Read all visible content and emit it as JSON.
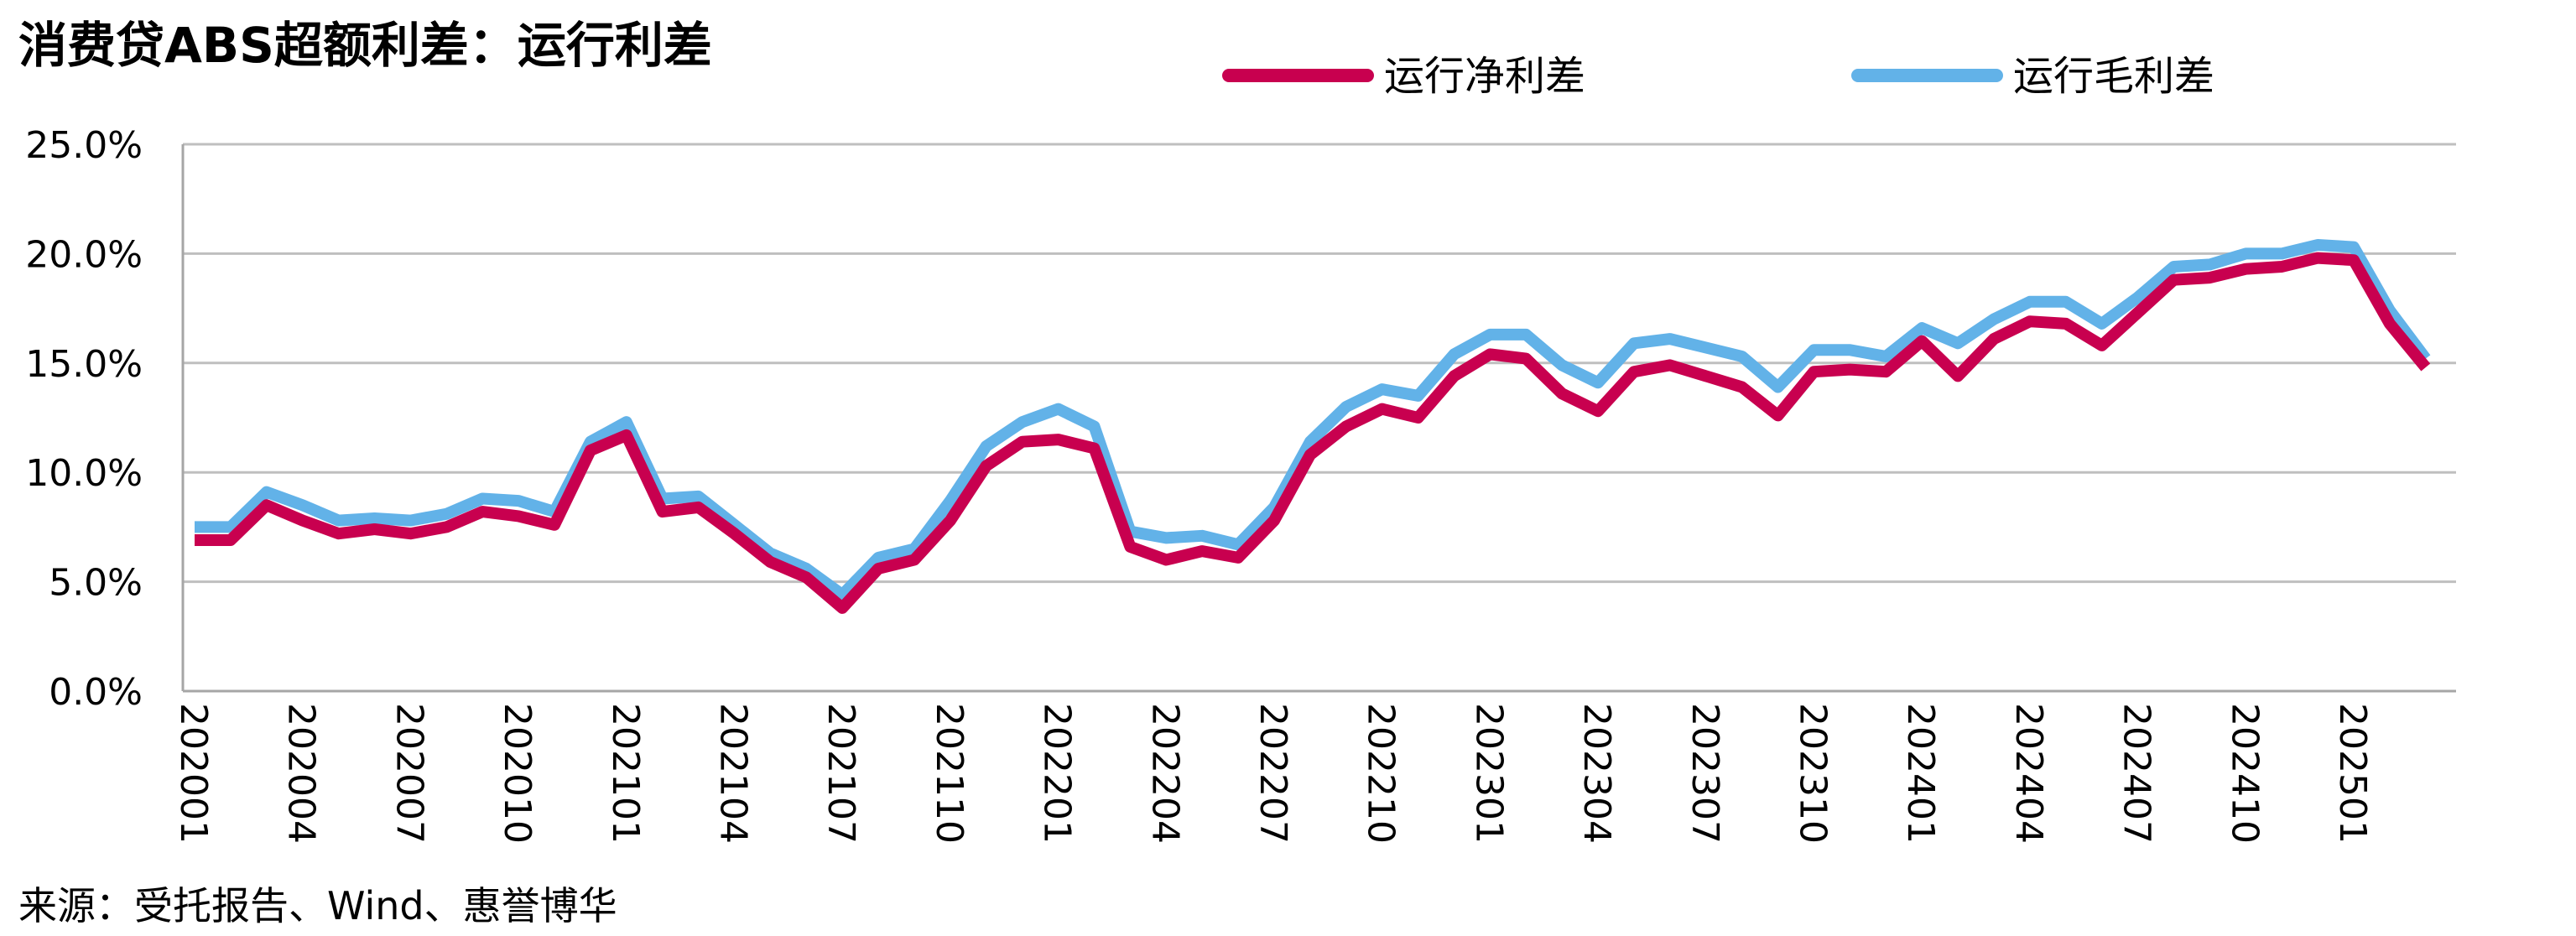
{
  "header": {
    "title": "消费贷ABS超额利差：运行利差"
  },
  "footer": {
    "source": "来源：受托报告、Wind、惠誉博华"
  },
  "colors": {
    "net": "#C8004F",
    "gross": "#62B2E8",
    "grid": "#BFBFBF",
    "axis": "#A6A6A6"
  },
  "chart_data": {
    "type": "line",
    "title": "消费贷ABS超额利差：运行利差",
    "xlabel": "",
    "ylabel": "",
    "ylim": [
      0,
      25
    ],
    "yticks": [
      "0.0%",
      "5.0%",
      "10.0%",
      "15.0%",
      "20.0%",
      "25.0%"
    ],
    "ytick_values": [
      0,
      5,
      10,
      15,
      20,
      25
    ],
    "xtick_labels": [
      "202001",
      "202004",
      "202007",
      "202010",
      "202101",
      "202104",
      "202107",
      "202110",
      "202201",
      "202204",
      "202207",
      "202210",
      "202301",
      "202304",
      "202307",
      "202310",
      "202401",
      "202404",
      "202407",
      "202410",
      "202501"
    ],
    "xtick_index_step": 3,
    "grid": true,
    "legend_position": "top",
    "x": [
      "202001",
      "202002",
      "202003",
      "202004",
      "202005",
      "202006",
      "202007",
      "202008",
      "202009",
      "202010",
      "202011",
      "202012",
      "202101",
      "202102",
      "202103",
      "202104",
      "202105",
      "202106",
      "202107",
      "202108",
      "202109",
      "202110",
      "202111",
      "202112",
      "202201",
      "202202",
      "202203",
      "202204",
      "202205",
      "202206",
      "202207",
      "202208",
      "202209",
      "202210",
      "202211",
      "202212",
      "202301",
      "202302",
      "202303",
      "202304",
      "202305",
      "202306",
      "202307",
      "202308",
      "202309",
      "202310",
      "202311",
      "202312",
      "202401",
      "202402",
      "202403",
      "202404",
      "202405",
      "202406",
      "202407",
      "202408",
      "202409",
      "202410",
      "202411",
      "202412",
      "202501",
      "202502",
      "202503"
    ],
    "series": [
      {
        "name": "运行净利差",
        "color": "#C8004F",
        "values": [
          6.9,
          6.9,
          8.5,
          7.8,
          7.2,
          7.4,
          7.2,
          7.5,
          8.2,
          8.0,
          7.6,
          11.0,
          11.7,
          8.2,
          8.4,
          7.2,
          5.9,
          5.2,
          3.8,
          5.6,
          6.0,
          7.8,
          10.3,
          11.4,
          11.5,
          11.1,
          6.6,
          6.0,
          6.4,
          6.1,
          7.8,
          10.8,
          12.1,
          12.9,
          12.5,
          14.4,
          15.4,
          15.2,
          13.6,
          12.8,
          14.6,
          14.9,
          14.4,
          13.9,
          12.6,
          14.6,
          14.7,
          14.6,
          16.0,
          14.4,
          16.1,
          16.9,
          16.8,
          15.8,
          17.3,
          18.8,
          18.9,
          19.3,
          19.4,
          19.8,
          19.7,
          16.8,
          14.8
        ]
      },
      {
        "name": "运行毛利差",
        "color": "#62B2E8",
        "values": [
          7.5,
          7.5,
          9.1,
          8.5,
          7.8,
          7.9,
          7.8,
          8.1,
          8.8,
          8.7,
          8.2,
          11.4,
          12.3,
          8.8,
          8.9,
          7.6,
          6.3,
          5.6,
          4.4,
          6.1,
          6.5,
          8.7,
          11.2,
          12.3,
          12.9,
          12.1,
          7.3,
          7.0,
          7.1,
          6.7,
          8.4,
          11.4,
          13.0,
          13.8,
          13.5,
          15.4,
          16.3,
          16.3,
          14.9,
          14.1,
          15.9,
          16.1,
          15.7,
          15.3,
          13.9,
          15.6,
          15.6,
          15.3,
          16.6,
          15.9,
          17.0,
          17.8,
          17.8,
          16.8,
          18.0,
          19.4,
          19.5,
          20.0,
          20.0,
          20.4,
          20.3,
          17.4,
          15.2
        ]
      }
    ]
  }
}
